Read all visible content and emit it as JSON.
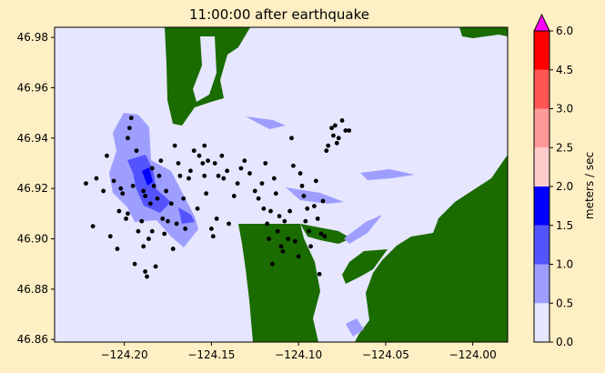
{
  "chart_data": {
    "type": "heatmap",
    "title": "11:00:00 after earthquake",
    "xlim": [
      -124.24,
      -123.98
    ],
    "ylim": [
      46.859,
      46.984
    ],
    "x_ticks": [
      {
        "value": -124.2,
        "label": "−124.20"
      },
      {
        "value": -124.15,
        "label": "−124.15"
      },
      {
        "value": -124.1,
        "label": "−124.10"
      },
      {
        "value": -124.05,
        "label": "−124.05"
      },
      {
        "value": -124.0,
        "label": "−124.00"
      }
    ],
    "y_ticks": [
      {
        "value": 46.86,
        "label": "46.86"
      },
      {
        "value": 46.88,
        "label": "46.88"
      },
      {
        "value": 46.9,
        "label": "46.90"
      },
      {
        "value": 46.92,
        "label": "46.92"
      },
      {
        "value": 46.94,
        "label": "46.94"
      },
      {
        "value": 46.96,
        "label": "46.96"
      },
      {
        "value": 46.98,
        "label": "46.98"
      }
    ],
    "colorbar": {
      "label": "meters / sec",
      "levels": [
        {
          "value": 0.0,
          "label": "0.0"
        },
        {
          "value": 0.5,
          "label": "0.5"
        },
        {
          "value": 1.0,
          "label": "1.0"
        },
        {
          "value": 1.5,
          "label": "1.5"
        },
        {
          "value": 2.0,
          "label": "2.0"
        },
        {
          "value": 2.5,
          "label": "2.5"
        },
        {
          "value": 3.0,
          "label": "3.0"
        },
        {
          "value": 4.5,
          "label": "4.5"
        },
        {
          "value": 6.0,
          "label": "6.0"
        }
      ],
      "colors": [
        "#e6e6ff",
        "#9e9eff",
        "#5454ff",
        "#0000ff",
        "#ffcccc",
        "#ff9999",
        "#ff5555",
        "#ff0000"
      ],
      "extend_color": "#ff00ff"
    },
    "land_color": "#1a6b00",
    "water_color": "#e6e6ff",
    "gauges": [
      [
        -124.222,
        46.922
      ],
      [
        -124.218,
        46.905
      ],
      [
        -124.216,
        46.924
      ],
      [
        -124.212,
        46.919
      ],
      [
        -124.21,
        46.933
      ],
      [
        -124.208,
        46.901
      ],
      [
        -124.206,
        46.923
      ],
      [
        -124.204,
        46.896
      ],
      [
        -124.203,
        46.911
      ],
      [
        -124.202,
        46.92
      ],
      [
        -124.201,
        46.918
      ],
      [
        -124.199,
        46.908
      ],
      [
        -124.198,
        46.94
      ],
      [
        -124.198,
        46.91
      ],
      [
        -124.197,
        46.944
      ],
      [
        -124.196,
        46.948
      ],
      [
        -124.195,
        46.921
      ],
      [
        -124.194,
        46.89
      ],
      [
        -124.193,
        46.935
      ],
      [
        -124.192,
        46.903
      ],
      [
        -124.19,
        46.907
      ],
      [
        -124.189,
        46.919
      ],
      [
        -124.189,
        46.897
      ],
      [
        -124.188,
        46.917
      ],
      [
        -124.188,
        46.887
      ],
      [
        -124.187,
        46.885
      ],
      [
        -124.186,
        46.9
      ],
      [
        -124.185,
        46.914
      ],
      [
        -124.184,
        46.928
      ],
      [
        -124.184,
        46.903
      ],
      [
        -124.183,
        46.921
      ],
      [
        -124.182,
        46.889
      ],
      [
        -124.181,
        46.916
      ],
      [
        -124.18,
        46.925
      ],
      [
        -124.179,
        46.931
      ],
      [
        -124.178,
        46.908
      ],
      [
        -124.177,
        46.902
      ],
      [
        -124.176,
        46.919
      ],
      [
        -124.175,
        46.907
      ],
      [
        -124.173,
        46.914
      ],
      [
        -124.172,
        46.896
      ],
      [
        -124.171,
        46.937
      ],
      [
        -124.17,
        46.906
      ],
      [
        -124.169,
        46.93
      ],
      [
        -124.168,
        46.925
      ],
      [
        -124.166,
        46.916
      ],
      [
        -124.165,
        46.904
      ],
      [
        -124.163,
        46.924
      ],
      [
        -124.162,
        46.927
      ],
      [
        -124.16,
        46.935
      ],
      [
        -124.158,
        46.912
      ],
      [
        -124.157,
        46.933
      ],
      [
        -124.155,
        46.93
      ],
      [
        -124.154,
        46.937
      ],
      [
        -124.154,
        46.925
      ],
      [
        -124.153,
        46.918
      ],
      [
        -124.152,
        46.931
      ],
      [
        -124.15,
        46.904
      ],
      [
        -124.149,
        46.901
      ],
      [
        -124.148,
        46.93
      ],
      [
        -124.147,
        46.908
      ],
      [
        -124.146,
        46.925
      ],
      [
        -124.144,
        46.933
      ],
      [
        -124.143,
        46.924
      ],
      [
        -124.141,
        46.927
      ],
      [
        -124.14,
        46.906
      ],
      [
        -124.137,
        46.917
      ],
      [
        -124.135,
        46.922
      ],
      [
        -124.133,
        46.928
      ],
      [
        -124.131,
        46.931
      ],
      [
        -124.128,
        46.926
      ],
      [
        -124.125,
        46.919
      ],
      [
        -124.123,
        46.916
      ],
      [
        -124.121,
        46.922
      ],
      [
        -124.12,
        46.912
      ],
      [
        -124.119,
        46.93
      ],
      [
        -124.118,
        46.906
      ],
      [
        -124.117,
        46.9
      ],
      [
        -124.116,
        46.911
      ],
      [
        -124.115,
        46.89
      ],
      [
        -124.114,
        46.924
      ],
      [
        -124.113,
        46.918
      ],
      [
        -124.112,
        46.903
      ],
      [
        -124.111,
        46.909
      ],
      [
        -124.11,
        46.897
      ],
      [
        -124.109,
        46.895
      ],
      [
        -124.108,
        46.907
      ],
      [
        -124.106,
        46.9
      ],
      [
        -124.105,
        46.911
      ],
      [
        -124.104,
        46.94
      ],
      [
        -124.103,
        46.929
      ],
      [
        -124.102,
        46.899
      ],
      [
        -124.1,
        46.893
      ],
      [
        -124.099,
        46.926
      ],
      [
        -124.098,
        46.921
      ],
      [
        -124.097,
        46.917
      ],
      [
        -124.096,
        46.907
      ],
      [
        -124.095,
        46.912
      ],
      [
        -124.094,
        46.903
      ],
      [
        -124.093,
        46.897
      ],
      [
        -124.091,
        46.913
      ],
      [
        -124.09,
        46.923
      ],
      [
        -124.089,
        46.908
      ],
      [
        -124.088,
        46.886
      ],
      [
        -124.087,
        46.902
      ],
      [
        -124.086,
        46.915
      ],
      [
        -124.085,
        46.901
      ],
      [
        -124.084,
        46.935
      ],
      [
        -124.083,
        46.937
      ],
      [
        -124.081,
        46.944
      ],
      [
        -124.08,
        46.941
      ],
      [
        -124.079,
        46.945
      ],
      [
        -124.078,
        46.938
      ],
      [
        -124.077,
        46.94
      ],
      [
        -124.075,
        46.947
      ],
      [
        -124.073,
        46.943
      ],
      [
        -124.071,
        46.943
      ]
    ]
  }
}
